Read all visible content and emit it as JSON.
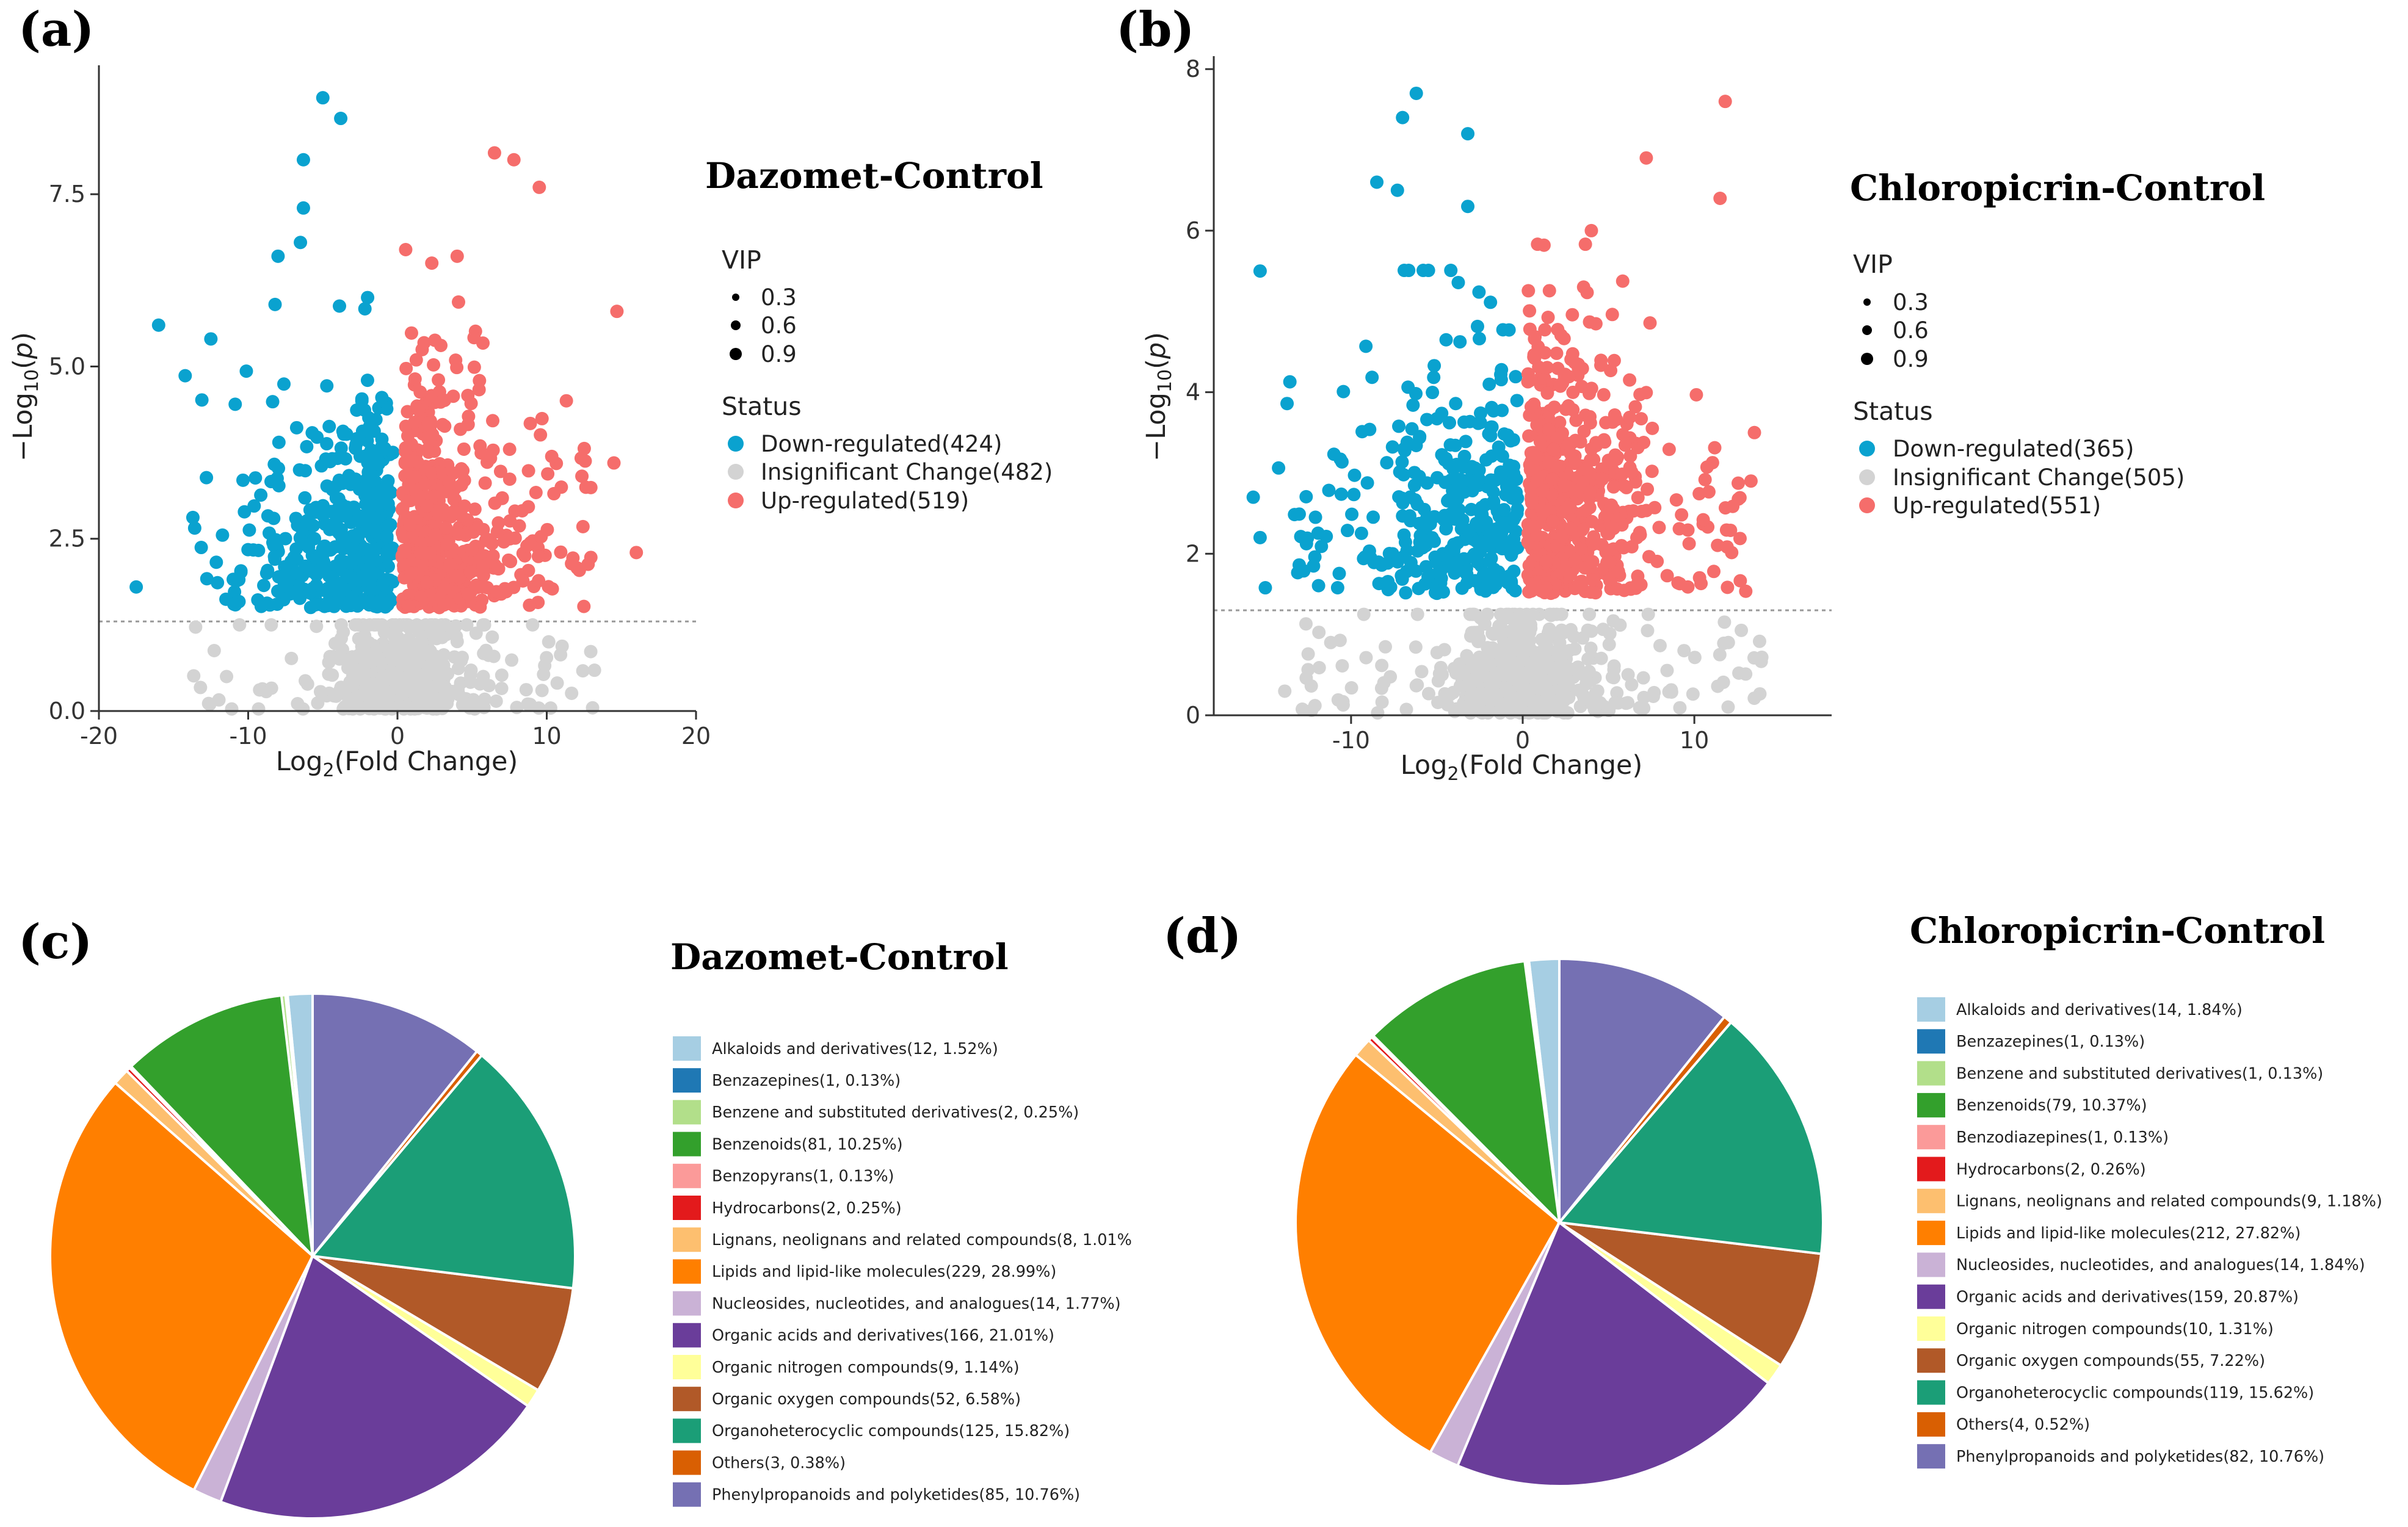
{
  "panels": {
    "a": "(a)",
    "b": "(b)",
    "c": "(c)",
    "d": "(d)"
  },
  "volcano_legend": {
    "vip_title": "VIP",
    "vip_sizes": [
      "0.3",
      "0.6",
      "0.9"
    ],
    "status_title": "Status"
  },
  "colors": {
    "down": "#0aa2cf",
    "insig": "#d3d3d3",
    "up": "#f56d6b"
  },
  "chart_data": [
    {
      "id": "a",
      "type": "scatter",
      "title": "Dazomet-Control",
      "xlabel": "Log2(Fold Change)",
      "ylabel": "-Log10(p)",
      "xlim": [
        -20,
        20
      ],
      "ylim": [
        0,
        9.3
      ],
      "xticks": [
        "-20",
        "-10",
        "0",
        "10",
        "20"
      ],
      "yticks": [
        "0.0",
        "2.5",
        "5.0",
        "7.5"
      ],
      "threshold": 1.3,
      "series": [
        {
          "name": "Down-regulated(424)",
          "key": "down",
          "count": 424
        },
        {
          "name": "Insignificant Change(482)",
          "key": "insig",
          "count": 482
        },
        {
          "name": "Up-regulated(519)",
          "key": "up",
          "count": 519
        }
      ],
      "highlighted_points": [
        {
          "x": -5,
          "y": 8.9,
          "s": "down"
        },
        {
          "x": -3.8,
          "y": 8.6,
          "s": "down"
        },
        {
          "x": -6.3,
          "y": 8.0,
          "s": "down"
        },
        {
          "x": -6.3,
          "y": 7.3,
          "s": "down"
        },
        {
          "x": -6.5,
          "y": 6.8,
          "s": "down"
        },
        {
          "x": -8,
          "y": 6.6,
          "s": "down"
        },
        {
          "x": -2,
          "y": 6.0,
          "s": "down"
        },
        {
          "x": -8.2,
          "y": 5.9,
          "s": "down"
        },
        {
          "x": -16,
          "y": 5.6,
          "s": "down"
        },
        {
          "x": -12.5,
          "y": 5.4,
          "s": "down"
        },
        {
          "x": -17.5,
          "y": 1.8,
          "s": "down"
        },
        {
          "x": 6.5,
          "y": 8.1,
          "s": "up"
        },
        {
          "x": 7.8,
          "y": 8.0,
          "s": "up"
        },
        {
          "x": 9.5,
          "y": 7.6,
          "s": "up"
        },
        {
          "x": 14.7,
          "y": 5.8,
          "s": "up"
        },
        {
          "x": 4,
          "y": 6.6,
          "s": "up"
        },
        {
          "x": 2.3,
          "y": 6.5,
          "s": "up"
        },
        {
          "x": 14.5,
          "y": 3.6,
          "s": "up"
        },
        {
          "x": 16,
          "y": 2.3,
          "s": "up"
        }
      ]
    },
    {
      "id": "b",
      "type": "scatter",
      "title": "Chloropicrin-Control",
      "xlabel": "Log2(Fold Change)",
      "ylabel": "-Log10(p)",
      "xlim": [
        -18,
        18
      ],
      "ylim": [
        0,
        8.1
      ],
      "xticks": [
        "-10",
        "0",
        "10"
      ],
      "yticks": [
        "0",
        "2",
        "4",
        "6",
        "8"
      ],
      "threshold": 1.3,
      "series": [
        {
          "name": "Down-regulated(365)",
          "key": "down",
          "count": 365
        },
        {
          "name": "Insignificant Change(505)",
          "key": "insig",
          "count": 505
        },
        {
          "name": "Up-regulated(551)",
          "key": "up",
          "count": 551
        }
      ],
      "highlighted_points": [
        {
          "x": -6.2,
          "y": 7.7,
          "s": "down"
        },
        {
          "x": -7,
          "y": 7.4,
          "s": "down"
        },
        {
          "x": -3.2,
          "y": 7.2,
          "s": "down"
        },
        {
          "x": -8.5,
          "y": 6.6,
          "s": "down"
        },
        {
          "x": -7.3,
          "y": 6.5,
          "s": "down"
        },
        {
          "x": -3.2,
          "y": 6.3,
          "s": "down"
        },
        {
          "x": -15.3,
          "y": 5.5,
          "s": "down"
        },
        {
          "x": -15.7,
          "y": 2.7,
          "s": "down"
        },
        {
          "x": -15.3,
          "y": 2.2,
          "s": "down"
        },
        {
          "x": 11.8,
          "y": 7.6,
          "s": "up"
        },
        {
          "x": 7.2,
          "y": 6.9,
          "s": "up"
        },
        {
          "x": 11.5,
          "y": 6.4,
          "s": "up"
        },
        {
          "x": 4,
          "y": 6.0,
          "s": "up"
        },
        {
          "x": 13.5,
          "y": 3.5,
          "s": "up"
        },
        {
          "x": 13.3,
          "y": 2.9,
          "s": "up"
        }
      ]
    },
    {
      "id": "c",
      "type": "pie",
      "title": "Dazomet-Control",
      "slices": [
        {
          "label": "Alkaloids and derivatives(12, 1.52%)",
          "value": 1.52,
          "color": "#a6cee3"
        },
        {
          "label": "Benzazepines(1, 0.13%)",
          "value": 0.13,
          "color": "#1f78b4"
        },
        {
          "label": "Benzene and substituted derivatives(2, 0.25%)",
          "value": 0.25,
          "color": "#b2df8a"
        },
        {
          "label": "Benzenoids(81, 10.25%)",
          "value": 10.25,
          "color": "#33a02c"
        },
        {
          "label": "Benzopyrans(1, 0.13%)",
          "value": 0.13,
          "color": "#fb9a99"
        },
        {
          "label": "Hydrocarbons(2, 0.25%)",
          "value": 0.25,
          "color": "#e31a1c"
        },
        {
          "label": "Lignans, neolignans and related compounds(8, 1.01%",
          "value": 1.01,
          "color": "#fdbf6f"
        },
        {
          "label": "Lipids and lipid-like molecules(229, 28.99%)",
          "value": 28.99,
          "color": "#ff7f00"
        },
        {
          "label": "Nucleosides, nucleotides, and analogues(14, 1.77%)",
          "value": 1.77,
          "color": "#cab2d6"
        },
        {
          "label": "Organic acids and derivatives(166, 21.01%)",
          "value": 21.01,
          "color": "#6a3d9a"
        },
        {
          "label": "Organic nitrogen compounds(9, 1.14%)",
          "value": 1.14,
          "color": "#ffff99"
        },
        {
          "label": "Organic oxygen compounds(52, 6.58%)",
          "value": 6.58,
          "color": "#b15928"
        },
        {
          "label": "Organoheterocyclic compounds(125, 15.82%)",
          "value": 15.82,
          "color": "#1b9e77"
        },
        {
          "label": "Others(3, 0.38%)",
          "value": 0.38,
          "color": "#d95f02"
        },
        {
          "label": "Phenylpropanoids and polyketides(85, 10.76%)",
          "value": 10.76,
          "color": "#7570b3"
        }
      ]
    },
    {
      "id": "d",
      "type": "pie",
      "title": "Chloropicrin-Control",
      "slices": [
        {
          "label": "Alkaloids and derivatives(14, 1.84%)",
          "value": 1.84,
          "color": "#a6cee3"
        },
        {
          "label": "Benzazepines(1, 0.13%)",
          "value": 0.13,
          "color": "#1f78b4"
        },
        {
          "label": "Benzene and substituted derivatives(1, 0.13%)",
          "value": 0.13,
          "color": "#b2df8a"
        },
        {
          "label": "Benzenoids(79, 10.37%)",
          "value": 10.37,
          "color": "#33a02c"
        },
        {
          "label": "Benzodiazepines(1, 0.13%)",
          "value": 0.13,
          "color": "#fb9a99"
        },
        {
          "label": "Hydrocarbons(2, 0.26%)",
          "value": 0.26,
          "color": "#e31a1c"
        },
        {
          "label": "Lignans, neolignans and related compounds(9, 1.18%)",
          "value": 1.18,
          "color": "#fdbf6f"
        },
        {
          "label": "Lipids and lipid-like molecules(212, 27.82%)",
          "value": 27.82,
          "color": "#ff7f00"
        },
        {
          "label": "Nucleosides, nucleotides, and analogues(14, 1.84%)",
          "value": 1.84,
          "color": "#cab2d6"
        },
        {
          "label": "Organic acids and derivatives(159, 20.87%)",
          "value": 20.87,
          "color": "#6a3d9a"
        },
        {
          "label": "Organic nitrogen compounds(10, 1.31%)",
          "value": 1.31,
          "color": "#ffff99"
        },
        {
          "label": "Organic oxygen compounds(55, 7.22%)",
          "value": 7.22,
          "color": "#b15928"
        },
        {
          "label": "Organoheterocyclic compounds(119, 15.62%)",
          "value": 15.62,
          "color": "#1b9e77"
        },
        {
          "label": "Others(4, 0.52%)",
          "value": 0.52,
          "color": "#d95f02"
        },
        {
          "label": "Phenylpropanoids and polyketides(82, 10.76%)",
          "value": 10.76,
          "color": "#7570b3"
        }
      ]
    }
  ]
}
